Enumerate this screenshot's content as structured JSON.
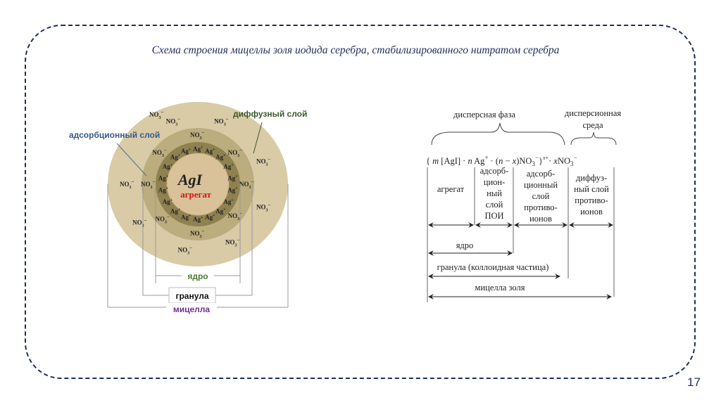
{
  "slide": {
    "title": "Схема строения мицеллы золя иодида серебра, стабилизированного нитратом серебра",
    "page_number": "17",
    "frame_color": "#1f2d5a"
  },
  "left_diagram": {
    "core_formula": "AgI",
    "aggregate_label": "агрегат",
    "adsorption_layer_label": "адсорбционный слой",
    "diffuse_layer_label": "диффузный слой",
    "nucleus_label": "ядро",
    "granule_label": "гранула",
    "micelle_label": "мицелла",
    "ion_nitrate": {
      "base": "NO",
      "sub": "3",
      "sup": "−"
    },
    "ion_silver": {
      "base": "Ag",
      "sup": "+"
    },
    "colors": {
      "outer": "#d8cba6",
      "middle": "#bbad7e",
      "inner": "#8f8250",
      "core": "#d9c29a",
      "aggregate": "#e01010",
      "adsorption_label": "#3a5a8a",
      "diffuse_label": "#3b5a2a",
      "nucleus_label": "#4d7a30",
      "micelle_label": "#6a2f8f"
    }
  },
  "right_diagram": {
    "dispersed_phase": "дисперсная фаза",
    "dispersion_medium_1": "дисперсионная",
    "dispersion_medium_2": "среда",
    "formula": {
      "open": "{ ",
      "m": "m",
      "agi": " [AgI] · ",
      "n": "n",
      "ag": " Ag",
      "ag_sup": "+",
      "mid": " · (",
      "n2": "n",
      "minus": " − ",
      "x": "x",
      "no3": ")NO",
      "no3_sub": "3",
      "no3_sup": "−",
      "close": "}",
      "charge_x": "x",
      "charge_plus": "+",
      "dot": "· ",
      "x2": "x",
      "no3b": "NO",
      "no3b_sub": "3",
      "no3b_sup": "−"
    },
    "aggregate": "агрегат",
    "poi": [
      "адсорб-",
      "цион-",
      "ный",
      "слой",
      "ПОИ"
    ],
    "counter_ions": [
      "адсорб-",
      "ционный",
      "слой",
      "противо-",
      "ионов"
    ],
    "diffuse": [
      "диффуз-",
      "ный слой",
      "противо-",
      "ионов"
    ],
    "nucleus": "ядро",
    "granule": "гранула (коллоидная частица)",
    "micelle": "мицелла золя"
  }
}
